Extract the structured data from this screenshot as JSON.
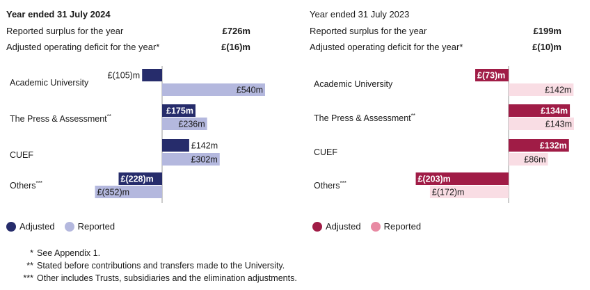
{
  "colors": {
    "adjusted_2024": "#262c6b",
    "reported_2024": "#b4b8de",
    "adjusted_2023": "#a01c46",
    "reported_2023": "#f9dde4",
    "reported_2023_legend": "#e88aa3",
    "bar_label_on_dark": "#ffffff",
    "bar_label_on_light": "#1a1a1a"
  },
  "panels": [
    {
      "title": "Year ended 31 July 2024",
      "title_bold": true,
      "summary": [
        {
          "label": "Reported surplus for the year",
          "value": "£726m"
        },
        {
          "label": "Adjusted operating deficit for the year*",
          "value": "£(16)m"
        }
      ],
      "legend": [
        {
          "label": "Adjusted",
          "color_key": "adjusted_2024"
        },
        {
          "label": "Reported",
          "color_key": "reported_2024"
        }
      ]
    },
    {
      "title": "Year ended 31 July 2023",
      "title_bold": false,
      "summary": [
        {
          "label": "Reported surplus for the year",
          "value": "£199m"
        },
        {
          "label": "Adjusted operating deficit for the year*",
          "value": "£(10)m"
        }
      ],
      "legend": [
        {
          "label": "Adjusted",
          "color_key": "adjusted_2023"
        },
        {
          "label": "Reported",
          "color_key": "reported_2023_legend"
        }
      ]
    }
  ],
  "chart_data": [
    {
      "type": "bar",
      "orientation": "horizontal",
      "title": "Year ended 31 July 2024",
      "categories": [
        {
          "name": "Academic University",
          "sup": ""
        },
        {
          "name": "The Press & Assessment",
          "sup": "**"
        },
        {
          "name": "CUEF",
          "sup": ""
        },
        {
          "name": "Others",
          "sup": "***"
        }
      ],
      "series": [
        {
          "name": "Adjusted",
          "values": [
            -105,
            175,
            142,
            -228
          ],
          "labels": [
            "£(105)m",
            "£175m",
            "£142m",
            "£(228)m"
          ]
        },
        {
          "name": "Reported",
          "values": [
            540,
            236,
            302,
            -352
          ],
          "labels": [
            "£540m",
            "£236m",
            "£302m",
            "£(352)m"
          ]
        }
      ],
      "legend_position": "bottom-left",
      "grid": false
    },
    {
      "type": "bar",
      "orientation": "horizontal",
      "title": "Year ended 31 July 2023",
      "categories": [
        {
          "name": "Academic University",
          "sup": ""
        },
        {
          "name": "The Press & Assessment",
          "sup": "**"
        },
        {
          "name": "CUEF",
          "sup": ""
        },
        {
          "name": "Others",
          "sup": "***"
        }
      ],
      "series": [
        {
          "name": "Adjusted",
          "values": [
            -73,
            134,
            132,
            -203
          ],
          "labels": [
            "£(73)m",
            "£134m",
            "£132m",
            "£(203)m"
          ]
        },
        {
          "name": "Reported",
          "values": [
            142,
            143,
            86,
            -172
          ],
          "labels": [
            "£142m",
            "£143m",
            "£86m",
            "£(172)m"
          ]
        }
      ],
      "legend_position": "bottom-left",
      "grid": false
    }
  ],
  "footnotes": [
    {
      "mark": "*",
      "text": "See Appendix 1."
    },
    {
      "mark": "**",
      "text": "Stated before contributions and transfers made to the University."
    },
    {
      "mark": "***",
      "text": "Other includes Trusts, subsidiaries and the elimination adjustments."
    }
  ]
}
